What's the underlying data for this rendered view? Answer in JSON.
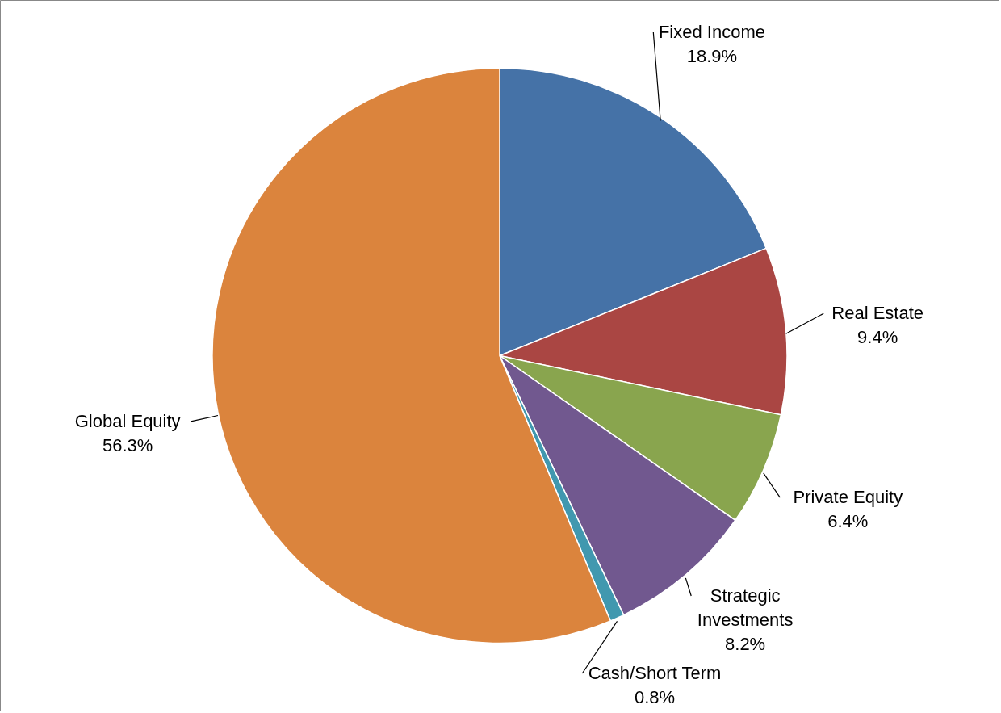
{
  "chart_data": {
    "type": "pie",
    "categories": [
      "Fixed Income",
      "Real Estate",
      "Private Equity",
      "Strategic Investments",
      "Cash/Short Term",
      "Global Equity"
    ],
    "values": [
      18.9,
      9.4,
      6.4,
      8.2,
      0.8,
      56.3
    ],
    "value_labels": [
      "18.9%",
      "9.4%",
      "6.4%",
      "8.2%",
      "0.8%",
      "56.3%"
    ],
    "colors": [
      "#4572a7",
      "#aa4643",
      "#89a54e",
      "#71588f",
      "#4198af",
      "#db843d"
    ]
  }
}
